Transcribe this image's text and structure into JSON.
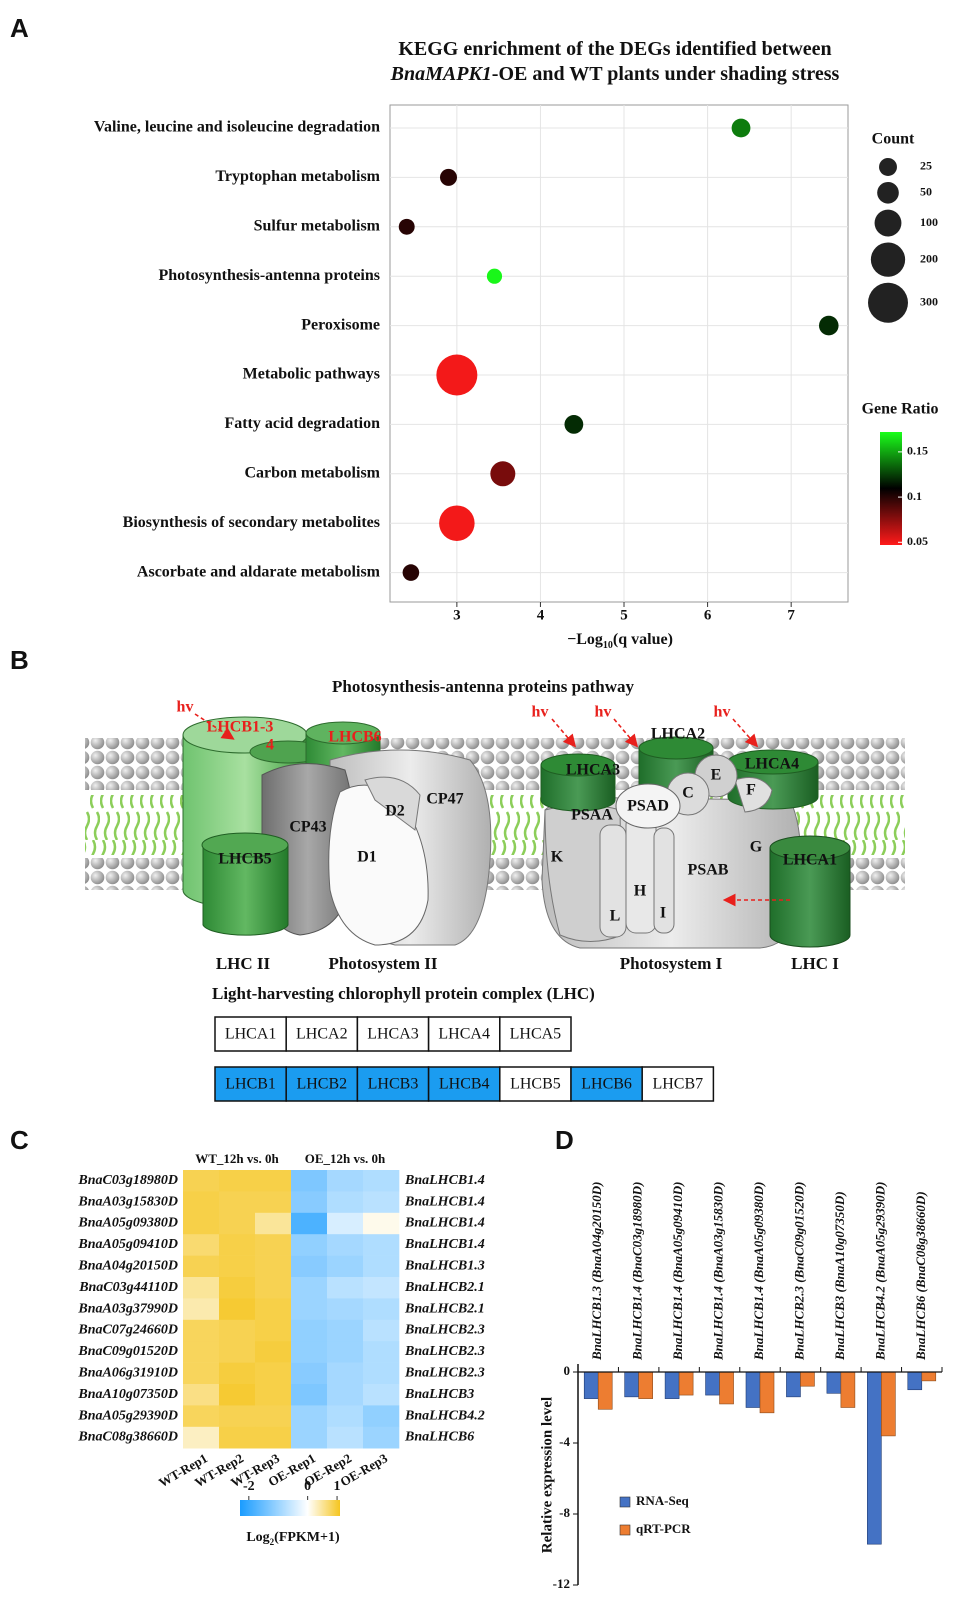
{
  "panels": [
    "A",
    "B",
    "C",
    "D"
  ],
  "chart_data": [
    {
      "type": "bubble",
      "title": [
        "KEGG enrichment of the DEGs identified between",
        "BnaMAPK1",
        "-OE and WT plants under shading stress"
      ],
      "categories": [
        "Valine, leucine and isoleucine degradation",
        "Tryptophan metabolism",
        "Sulfur metabolism",
        "Photosynthesis-antenna proteins",
        "Peroxisome",
        "Metabolic pathways",
        "Fatty acid degradation",
        "Carbon metabolism",
        "Biosynthesis of secondary metabolites",
        "Ascorbate and aldarate metabolism"
      ],
      "values": [
        6.4,
        2.9,
        2.4,
        3.45,
        7.45,
        3.0,
        4.4,
        3.55,
        3.0,
        2.45
      ],
      "counts": [
        30,
        20,
        15,
        12,
        35,
        320,
        30,
        80,
        220,
        18
      ],
      "gene_ratio": [
        0.14,
        0.1,
        0.1,
        0.17,
        0.12,
        0.05,
        0.12,
        0.08,
        0.05,
        0.1
      ],
      "xlim": [
        2.2,
        7.68
      ],
      "xticks": [
        3,
        4,
        5,
        6,
        7
      ],
      "grid": true,
      "xlabel": [
        "−Log",
        "10",
        "(q value)"
      ],
      "size_legend": {
        "title": "Count",
        "values": [
          25,
          50,
          100,
          200,
          300
        ]
      },
      "color_legend": {
        "title": "Gene Ratio",
        "ticks": [
          0.05,
          0.1,
          0.15
        ],
        "clim": [
          0.047,
          0.172
        ],
        "colors": [
          "#ff1a1a",
          "#000000",
          "#1aff1a"
        ]
      }
    },
    {
      "type": "heatmap",
      "column_groups": [
        "WT_12h vs. 0h",
        "OE_12h vs. 0h"
      ],
      "columns": [
        "WT-Rep1",
        "WT-Rep2",
        "WT-Rep3",
        "OE-Rep1",
        "OE-Rep2",
        "OE-Rep3"
      ],
      "rows": [
        "BnaC03g18980D",
        "BnaA03g15830D",
        "BnaA05g09380D",
        "BnaA05g09410D",
        "BnaA04g20150D",
        "BnaC03g44110D",
        "BnaA03g37990D",
        "BnaC07g24660D",
        "BnaC09g01520D",
        "BnaA06g31910D",
        "BnaA10g07350D",
        "BnaA05g29390D",
        "BnaC08g38660D"
      ],
      "rows_right": [
        "BnaLHCB1.4",
        "BnaLHCB1.4",
        "BnaLHCB1.4",
        "BnaLHCB1.4",
        "BnaLHCB1.3",
        "BnaLHCB2.1",
        "BnaLHCB2.1",
        "BnaLHCB2.3",
        "BnaLHCB2.3",
        "BnaLHCB2.3",
        "BnaLHCB3",
        "BnaLHCB4.2",
        "BnaLHCB6"
      ],
      "values": [
        [
          0.85,
          0.9,
          0.9,
          -1.3,
          -0.9,
          -0.8
        ],
        [
          0.9,
          0.85,
          0.85,
          -1.2,
          -0.8,
          -0.7
        ],
        [
          0.9,
          0.85,
          0.5,
          -1.8,
          -0.4,
          0.1
        ],
        [
          0.7,
          0.9,
          0.85,
          -1.1,
          -0.9,
          -0.8
        ],
        [
          0.85,
          0.9,
          0.85,
          -1.2,
          -1.0,
          -0.8
        ],
        [
          0.5,
          0.95,
          0.85,
          -1.0,
          -0.7,
          -0.6
        ],
        [
          0.4,
          1.0,
          0.9,
          -1.0,
          -0.9,
          -0.8
        ],
        [
          0.8,
          0.85,
          0.9,
          -1.1,
          -1.0,
          -0.7
        ],
        [
          0.8,
          0.85,
          0.95,
          -1.1,
          -1.0,
          -0.8
        ],
        [
          0.8,
          0.95,
          0.9,
          -1.2,
          -0.9,
          -0.8
        ],
        [
          0.6,
          1.0,
          0.9,
          -1.3,
          -0.9,
          -0.7
        ],
        [
          0.8,
          0.85,
          0.85,
          -1.0,
          -0.8,
          -1.1
        ],
        [
          0.3,
          0.9,
          0.9,
          -1.0,
          -0.7,
          -1.0
        ]
      ],
      "zlim": [
        -2.3,
        1.1
      ],
      "zticks": [
        -2,
        0,
        1
      ],
      "colors": [
        "#1a9cff",
        "#ffffff",
        "#f5c51f"
      ],
      "colorbar_label": [
        "Log",
        "2",
        "(FPKM+1)"
      ]
    },
    {
      "type": "bar",
      "categories": [
        "BnaLHCB1.3 (BnaA04g20150D)",
        "BnaLHCB1.4 (BnaC03g18980D)",
        "BnaLHCB1.4 (BnaA05g09410D)",
        "BnaLHCB1.4 (BnaA03g15830D)",
        "BnaLHCB1.4 (BnaA05g09380D)",
        "BnaLHCB2.3 (BnaC09g01520D)",
        "BnaLHCB3 (BnaA10g07350D)",
        "BnaLHCB4.2 (BnaA05g29390D)",
        "BnaLHCB6 (BnaC08g38660D)"
      ],
      "series": [
        {
          "name": "RNA-Seq",
          "color": "#4472c4",
          "values": [
            -1.5,
            -1.4,
            -1.5,
            -1.3,
            -2.0,
            -1.4,
            -1.2,
            -9.7,
            -1.0
          ]
        },
        {
          "name": "qRT-PCR",
          "color": "#ed7d31",
          "values": [
            -2.1,
            -1.5,
            -1.3,
            -1.8,
            -2.3,
            -0.8,
            -2.0,
            -3.6,
            -0.5
          ]
        }
      ],
      "ylim": [
        -12,
        0
      ],
      "yticks": [
        0,
        -4,
        -8,
        -12
      ],
      "ylabel": "Relative expression level"
    }
  ],
  "diagram": {
    "title": "Photosynthesis-antenna proteins pathway",
    "labels": [
      "hv",
      "hv",
      "hv",
      "hv",
      "LHCB1-3",
      "4",
      "LHCB6",
      "LHCB5",
      "CP43",
      "D2",
      "CP47",
      "D1",
      "LHCA3",
      "LHCA2",
      "LHCA4",
      "PSAD",
      "E",
      "C",
      "F",
      "PSAA",
      "K",
      "H",
      "L",
      "I",
      "PSAB",
      "G",
      "LHCA1",
      "LHC II",
      "Photosystem II",
      "Photosystem I",
      "LHC I"
    ],
    "lhc_title": "Light-harvesting chlorophyll protein complex (LHC)",
    "table": [
      [
        {
          "label": "LHCA1",
          "highlight": false
        },
        {
          "label": "LHCA2",
          "highlight": false
        },
        {
          "label": "LHCA3",
          "highlight": false
        },
        {
          "label": "LHCA4",
          "highlight": false
        },
        {
          "label": "LHCA5",
          "highlight": false
        }
      ],
      [
        {
          "label": "LHCB1",
          "highlight": true
        },
        {
          "label": "LHCB2",
          "highlight": true
        },
        {
          "label": "LHCB3",
          "highlight": true
        },
        {
          "label": "LHCB4",
          "highlight": true
        },
        {
          "label": "LHCB5",
          "highlight": false
        },
        {
          "label": "LHCB6",
          "highlight": true
        },
        {
          "label": "LHCB7",
          "highlight": false
        }
      ]
    ]
  }
}
